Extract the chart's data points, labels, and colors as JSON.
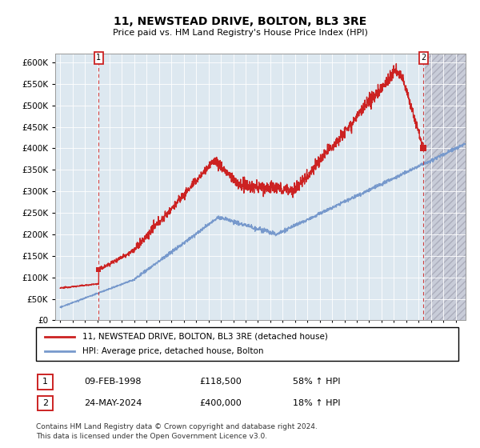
{
  "title": "11, NEWSTEAD DRIVE, BOLTON, BL3 3RE",
  "subtitle": "Price paid vs. HM Land Registry's House Price Index (HPI)",
  "ylim": [
    0,
    620000
  ],
  "yticks": [
    0,
    50000,
    100000,
    150000,
    200000,
    250000,
    300000,
    350000,
    400000,
    450000,
    500000,
    550000,
    600000
  ],
  "xlim_start": 1994.6,
  "xlim_end": 2027.8,
  "sale1_year": 1998.12,
  "sale1_price": 118500,
  "sale2_year": 2024.39,
  "sale2_price": 400000,
  "hatch_start": 2024.5,
  "red_line_color": "#cc2222",
  "blue_line_color": "#7799cc",
  "bg_color": "#dde8f0",
  "hatch_bg_color": "#d0d0d8",
  "grid_color": "#ffffff",
  "legend_label1": "11, NEWSTEAD DRIVE, BOLTON, BL3 3RE (detached house)",
  "legend_label2": "HPI: Average price, detached house, Bolton",
  "table_row1": [
    "1",
    "09-FEB-1998",
    "£118,500",
    "58% ↑ HPI"
  ],
  "table_row2": [
    "2",
    "24-MAY-2024",
    "£400,000",
    "18% ↑ HPI"
  ],
  "footnote": "Contains HM Land Registry data © Crown copyright and database right 2024.\nThis data is licensed under the Open Government Licence v3.0."
}
